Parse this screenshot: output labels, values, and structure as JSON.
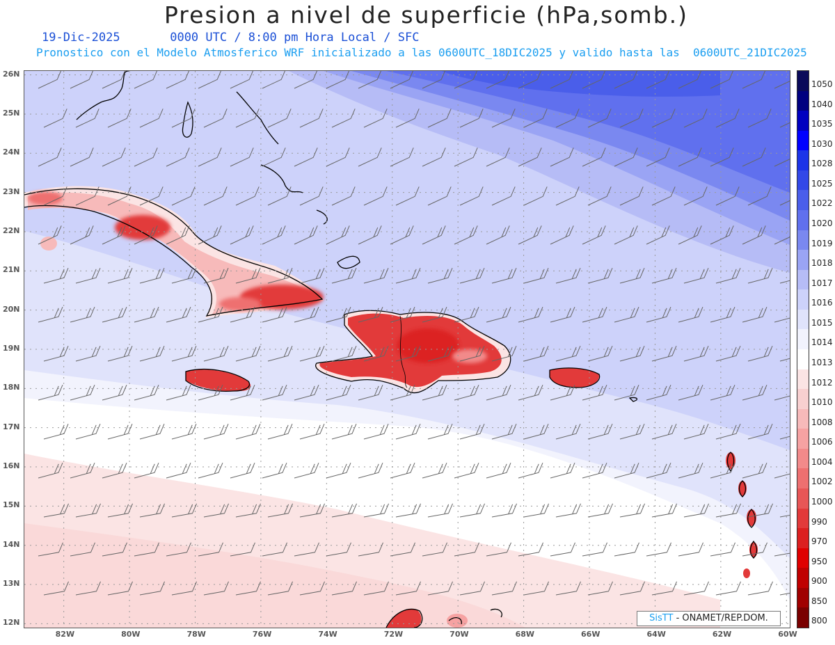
{
  "header": {
    "title": "Presion a nivel de superficie (hPa,somb.)",
    "line1": "19-Dic-2025       0000 UTC / 8:00 pm Hora Local / SFC",
    "line2": "Pronostico con el Modelo Atmosferico WRF inicializado a las 0600UTC_18DIC2025 y valido hasta las  0600UTC_21DIC2025"
  },
  "map": {
    "lat_labels": [
      "26N",
      "25N",
      "24N",
      "23N",
      "22N",
      "21N",
      "20N",
      "19N",
      "18N",
      "17N",
      "16N",
      "15N",
      "14N",
      "13N",
      "12N"
    ],
    "lon_labels": [
      "82W",
      "80W",
      "78W",
      "76W",
      "74W",
      "72W",
      "70W",
      "68W",
      "66W",
      "64W",
      "62W",
      "60W"
    ],
    "extent": {
      "lon_min": -83.2,
      "lon_max": -59.9,
      "lat_min": 11.9,
      "lat_max": 26.1
    }
  },
  "colorbar": {
    "labels": [
      "1050",
      "1040",
      "1035",
      "1030",
      "1028",
      "1025",
      "1022",
      "1020",
      "1019",
      "1018",
      "1017",
      "1016",
      "1015",
      "1014",
      "1013",
      "1012",
      "1010",
      "1008",
      "1006",
      "1004",
      "1002",
      "1000",
      "990",
      "970",
      "950",
      "900",
      "850",
      "800"
    ],
    "colors": [
      "#0a0a5a",
      "#000080",
      "#0000c0",
      "#0000ff",
      "#1c34e8",
      "#3248e8",
      "#4a5eea",
      "#6070ee",
      "#7a88f0",
      "#9aa4f4",
      "#b6bcf6",
      "#cdd2fa",
      "#e0e3fb",
      "#f2f3fd",
      "#ffffff",
      "#fbe4e4",
      "#f8d0d0",
      "#f7baba",
      "#f6a2a2",
      "#f28a8a",
      "#ee7070",
      "#e85656",
      "#e23a3a",
      "#dc2020",
      "#e00000",
      "#c00000",
      "#a00000",
      "#7a0000"
    ]
  },
  "credit": {
    "brand": "SisTT",
    "text": " - ONAMET/REP.DOM."
  }
}
